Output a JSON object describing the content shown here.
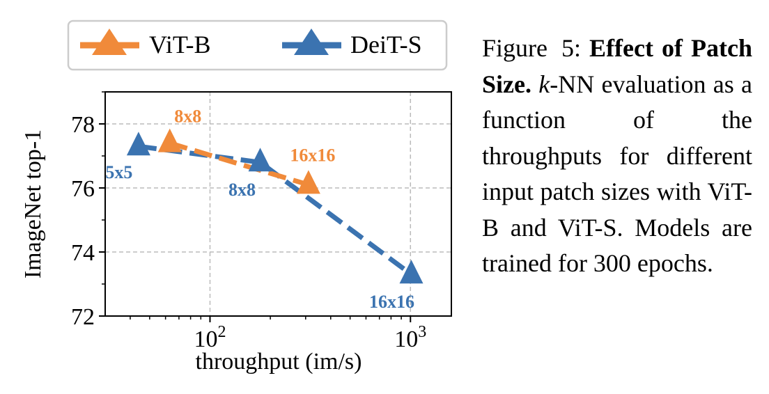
{
  "chart_data": {
    "type": "line",
    "xscale": "log",
    "xlabel": "throughput (im/s)",
    "ylabel": "ImageNet top-1",
    "xlim": [
      30,
      1600
    ],
    "ylim": [
      72,
      79
    ],
    "xticks": [
      100,
      1000
    ],
    "xtick_labels": [
      {
        "base": "10",
        "exp": "2"
      },
      {
        "base": "10",
        "exp": "3"
      }
    ],
    "yticks": [
      72,
      74,
      76,
      78
    ],
    "grid": true,
    "legend_position": "top",
    "series": [
      {
        "name": "DeiT-S",
        "color": "#3b73b0",
        "marker": "triangle",
        "linestyle": "dashed",
        "points": [
          {
            "x": 44,
            "y": 77.3,
            "label": "5x5"
          },
          {
            "x": 178,
            "y": 76.8,
            "label": "8x8"
          },
          {
            "x": 1010,
            "y": 73.3,
            "label": "16x16"
          }
        ]
      },
      {
        "name": "ViT-B",
        "color": "#f08a3a",
        "marker": "triangle",
        "linestyle": "dashed",
        "points": [
          {
            "x": 63,
            "y": 77.4,
            "label": "8x8"
          },
          {
            "x": 310,
            "y": 76.1,
            "label": "16x16"
          }
        ]
      }
    ]
  },
  "legend": [
    {
      "name": "ViT-B",
      "color": "#f08a3a"
    },
    {
      "name": "DeiT-S",
      "color": "#3b73b0"
    }
  ],
  "caption": {
    "label": "Figure 5:",
    "title": "Effect of Patch Size.",
    "italic_k": "k",
    "body": "-NN evaluation as a function of the throughputs for different input patch sizes with ViT-B and ViT-S. Models are trained for 300 epochs."
  }
}
